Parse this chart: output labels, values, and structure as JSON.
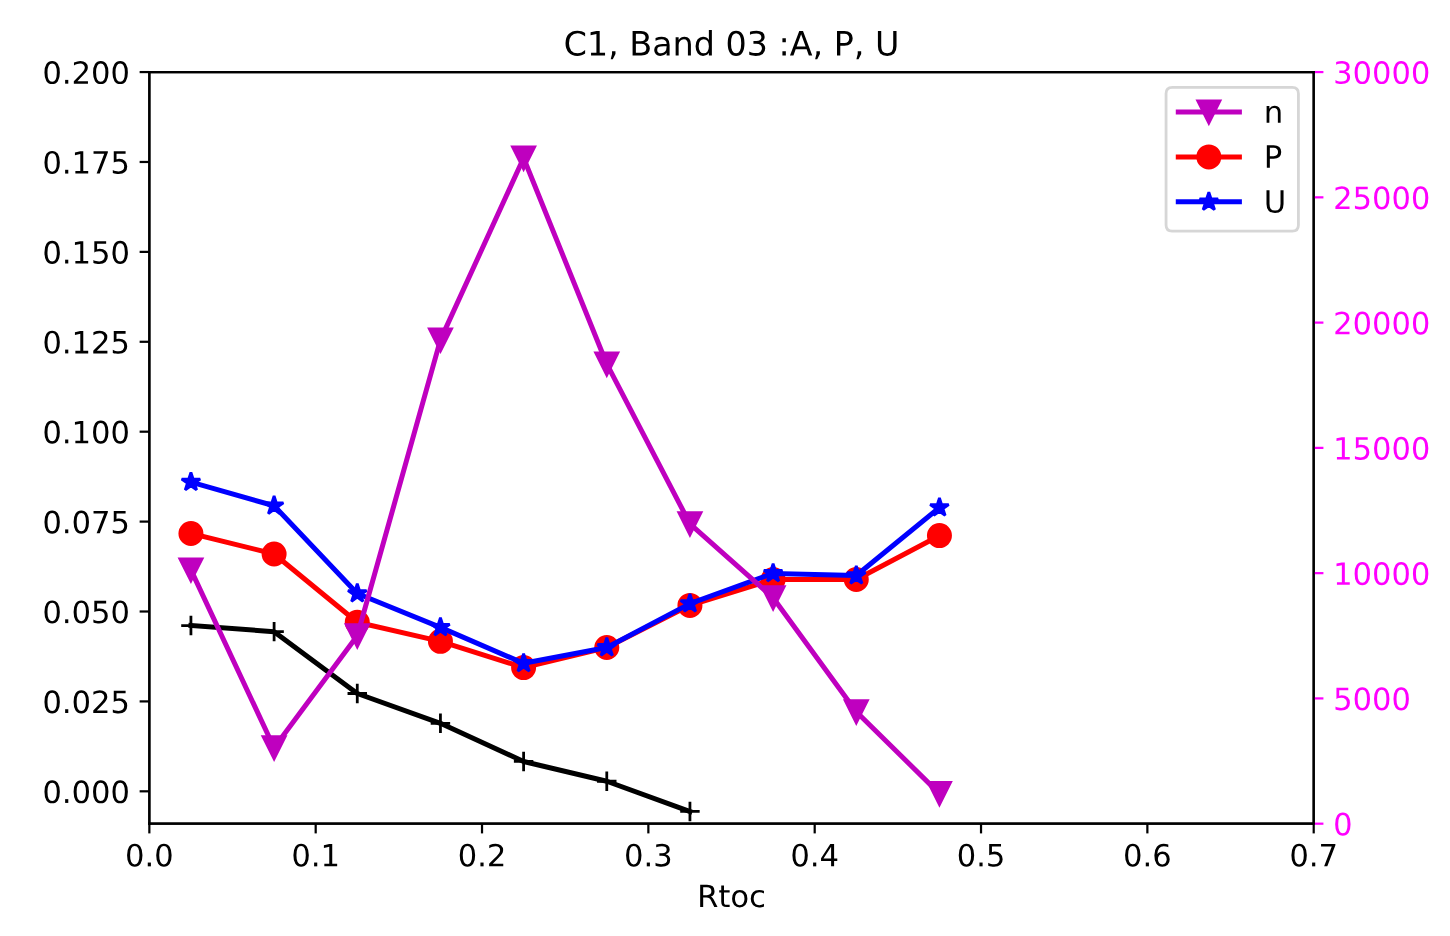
{
  "chart_data": {
    "type": "line",
    "title": "C1, Band 03 :A, P, U",
    "xlabel": "Rtoc",
    "x": [
      0.025,
      0.075,
      0.125,
      0.175,
      0.225,
      0.275,
      0.325,
      0.375,
      0.425,
      0.475
    ],
    "xlim": [
      0.0,
      0.7
    ],
    "xticks": [
      {
        "value": 0,
        "label": "0.0"
      },
      {
        "value": 0.1,
        "label": "0.1"
      },
      {
        "value": 0.2,
        "label": "0.2"
      },
      {
        "value": 0.3,
        "label": "0.3"
      },
      {
        "value": 0.4,
        "label": "0.4"
      },
      {
        "value": 0.5,
        "label": "0.5"
      },
      {
        "value": 0.6,
        "label": "0.6"
      },
      {
        "value": 0.7,
        "label": "0.7"
      }
    ],
    "ylim": [
      -0.009,
      0.2
    ],
    "yticks": [
      {
        "value": 0,
        "label": "0.000"
      },
      {
        "value": 0.025,
        "label": "0.025"
      },
      {
        "value": 0.05,
        "label": "0.050"
      },
      {
        "value": 0.075,
        "label": "0.075"
      },
      {
        "value": 0.1,
        "label": "0.100"
      },
      {
        "value": 0.125,
        "label": "0.125"
      },
      {
        "value": 0.15,
        "label": "0.150"
      },
      {
        "value": 0.175,
        "label": "0.175"
      },
      {
        "value": 0.2,
        "label": "0.200"
      }
    ],
    "y2lim": [
      0,
      30000
    ],
    "y2ticks": [
      0,
      5000,
      10000,
      15000,
      20000,
      25000,
      30000
    ],
    "legend": "top right",
    "grid": false,
    "series": [
      {
        "name": "n",
        "color": "#bf00bf",
        "axis": "y2",
        "marker": "triangle_down",
        "values": [
          10130,
          3030,
          7500,
          19310,
          26570,
          18350,
          11970,
          9020,
          4470,
          1200
        ]
      },
      {
        "name": "P",
        "color": "#ff0000",
        "marker": "circle",
        "values": [
          0.0717,
          0.066,
          0.047,
          0.0417,
          0.0344,
          0.04,
          0.0517,
          0.0589,
          0.0589,
          0.0711
        ]
      },
      {
        "name": "U",
        "color": "#0000ff",
        "marker": "star",
        "values": [
          0.086,
          0.0794,
          0.055,
          0.0456,
          0.0356,
          0.04,
          0.0522,
          0.0606,
          0.06,
          0.0789
        ]
      },
      {
        "color": "#000000",
        "marker": "plus",
        "values": [
          0.0461,
          0.0444,
          0.0272,
          0.0189,
          0.0083,
          0.0028,
          -0.0056,
          null,
          null,
          null
        ]
      }
    ]
  }
}
